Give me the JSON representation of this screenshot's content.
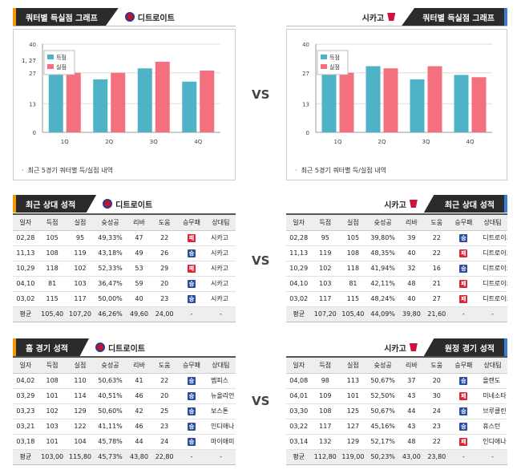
{
  "vs_label": "VS",
  "quarter": {
    "left_title": "쿼터별 득실점 그래프",
    "right_title": "쿼터별 득실점 그래프",
    "left_team": "디트로이트",
    "right_team": "시카고",
    "note": "최근 5경기 쿼터별 득/실점 내역",
    "tooltip": "1, 27"
  },
  "chart_data": [
    {
      "type": "bar",
      "title": "",
      "categories": [
        "1Q",
        "2Q",
        "3Q",
        "4Q"
      ],
      "ylim": [
        0,
        40
      ],
      "yticks": [
        "0",
        "13",
        "27",
        "40"
      ],
      "legend": "top-left",
      "series": [
        {
          "name": "득점",
          "color": "#4fb3c7",
          "values": [
            27,
            24,
            29,
            23
          ]
        },
        {
          "name": "실점",
          "color": "#f4707e",
          "values": [
            27,
            27,
            32,
            28
          ]
        }
      ]
    },
    {
      "type": "bar",
      "title": "",
      "categories": [
        "1Q",
        "2Q",
        "3Q",
        "4Q"
      ],
      "ylim": [
        0,
        40
      ],
      "yticks": [
        "0",
        "13",
        "27",
        "40"
      ],
      "legend": "top-left",
      "series": [
        {
          "name": "득점",
          "color": "#4fb3c7",
          "values": [
            27,
            30,
            24,
            26
          ]
        },
        {
          "name": "실점",
          "color": "#f4707e",
          "values": [
            27,
            29,
            30,
            25
          ]
        }
      ]
    }
  ],
  "recent": {
    "left_title": "최근 상대 성적",
    "right_title": "최근 상대 성적",
    "left_team": "디트로이트",
    "right_team": "시카고",
    "headers": [
      "일자",
      "득점",
      "실점",
      "슛성공",
      "리바",
      "도움",
      "승무패",
      "상대팀"
    ],
    "left_rows": [
      [
        "02,28",
        "105",
        "95",
        "49,33%",
        "47",
        "22",
        "패",
        "시카고"
      ],
      [
        "11,13",
        "108",
        "119",
        "43,18%",
        "49",
        "26",
        "승",
        "시카고"
      ],
      [
        "10,29",
        "118",
        "102",
        "52,33%",
        "53",
        "29",
        "패",
        "시카고"
      ],
      [
        "04,10",
        "81",
        "103",
        "36,47%",
        "59",
        "20",
        "승",
        "시카고"
      ],
      [
        "03,02",
        "115",
        "117",
        "50,00%",
        "40",
        "23",
        "승",
        "시카고"
      ]
    ],
    "left_avg": [
      "평균",
      "105,40",
      "107,20",
      "46,26%",
      "49,60",
      "24,00",
      "-",
      "-"
    ],
    "right_rows": [
      [
        "02,28",
        "95",
        "105",
        "39,80%",
        "39",
        "22",
        "승",
        "디트로이트"
      ],
      [
        "11,13",
        "119",
        "108",
        "48,35%",
        "40",
        "22",
        "패",
        "디트로이트"
      ],
      [
        "10,29",
        "102",
        "118",
        "41,94%",
        "32",
        "16",
        "승",
        "디트로이트"
      ],
      [
        "04,10",
        "103",
        "81",
        "42,11%",
        "48",
        "21",
        "패",
        "디트로이트"
      ],
      [
        "03,02",
        "117",
        "115",
        "48,24%",
        "40",
        "27",
        "패",
        "디트로이트"
      ]
    ],
    "right_avg": [
      "평균",
      "107,20",
      "105,40",
      "44,09%",
      "39,80",
      "21,60",
      "-",
      "-"
    ]
  },
  "venue": {
    "left_title": "홈 경기 성적",
    "right_title": "원정 경기 성적",
    "left_team": "디트로이트",
    "right_team": "시카고",
    "headers": [
      "일자",
      "득점",
      "실점",
      "슛성공",
      "리바",
      "도움",
      "승무패",
      "상대팀"
    ],
    "left_rows": [
      [
        "04,02",
        "108",
        "110",
        "50,63%",
        "41",
        "22",
        "승",
        "멤피스"
      ],
      [
        "03,29",
        "101",
        "114",
        "40,51%",
        "46",
        "20",
        "승",
        "뉴올리언"
      ],
      [
        "03,23",
        "102",
        "129",
        "50,60%",
        "42",
        "25",
        "승",
        "보스톤"
      ],
      [
        "03,21",
        "103",
        "122",
        "41,11%",
        "46",
        "23",
        "승",
        "인디애나"
      ],
      [
        "03,18",
        "101",
        "104",
        "45,78%",
        "44",
        "24",
        "승",
        "마이애미"
      ]
    ],
    "left_avg": [
      "평균",
      "103,00",
      "115,80",
      "45,73%",
      "43,80",
      "22,80",
      "-",
      "-"
    ],
    "right_rows": [
      [
        "04,08",
        "98",
        "113",
        "50,67%",
        "37",
        "20",
        "승",
        "올랜도"
      ],
      [
        "04,01",
        "109",
        "101",
        "52,50%",
        "43",
        "30",
        "패",
        "미네소타"
      ],
      [
        "03,30",
        "108",
        "125",
        "50,67%",
        "44",
        "24",
        "승",
        "브루클린"
      ],
      [
        "03,22",
        "117",
        "127",
        "45,16%",
        "43",
        "23",
        "승",
        "휴스턴"
      ],
      [
        "03,14",
        "132",
        "129",
        "52,17%",
        "48",
        "22",
        "패",
        "인디애나"
      ]
    ],
    "right_avg": [
      "평균",
      "112,80",
      "119,00",
      "50,23%",
      "43,00",
      "23,80",
      "-",
      "-"
    ]
  }
}
